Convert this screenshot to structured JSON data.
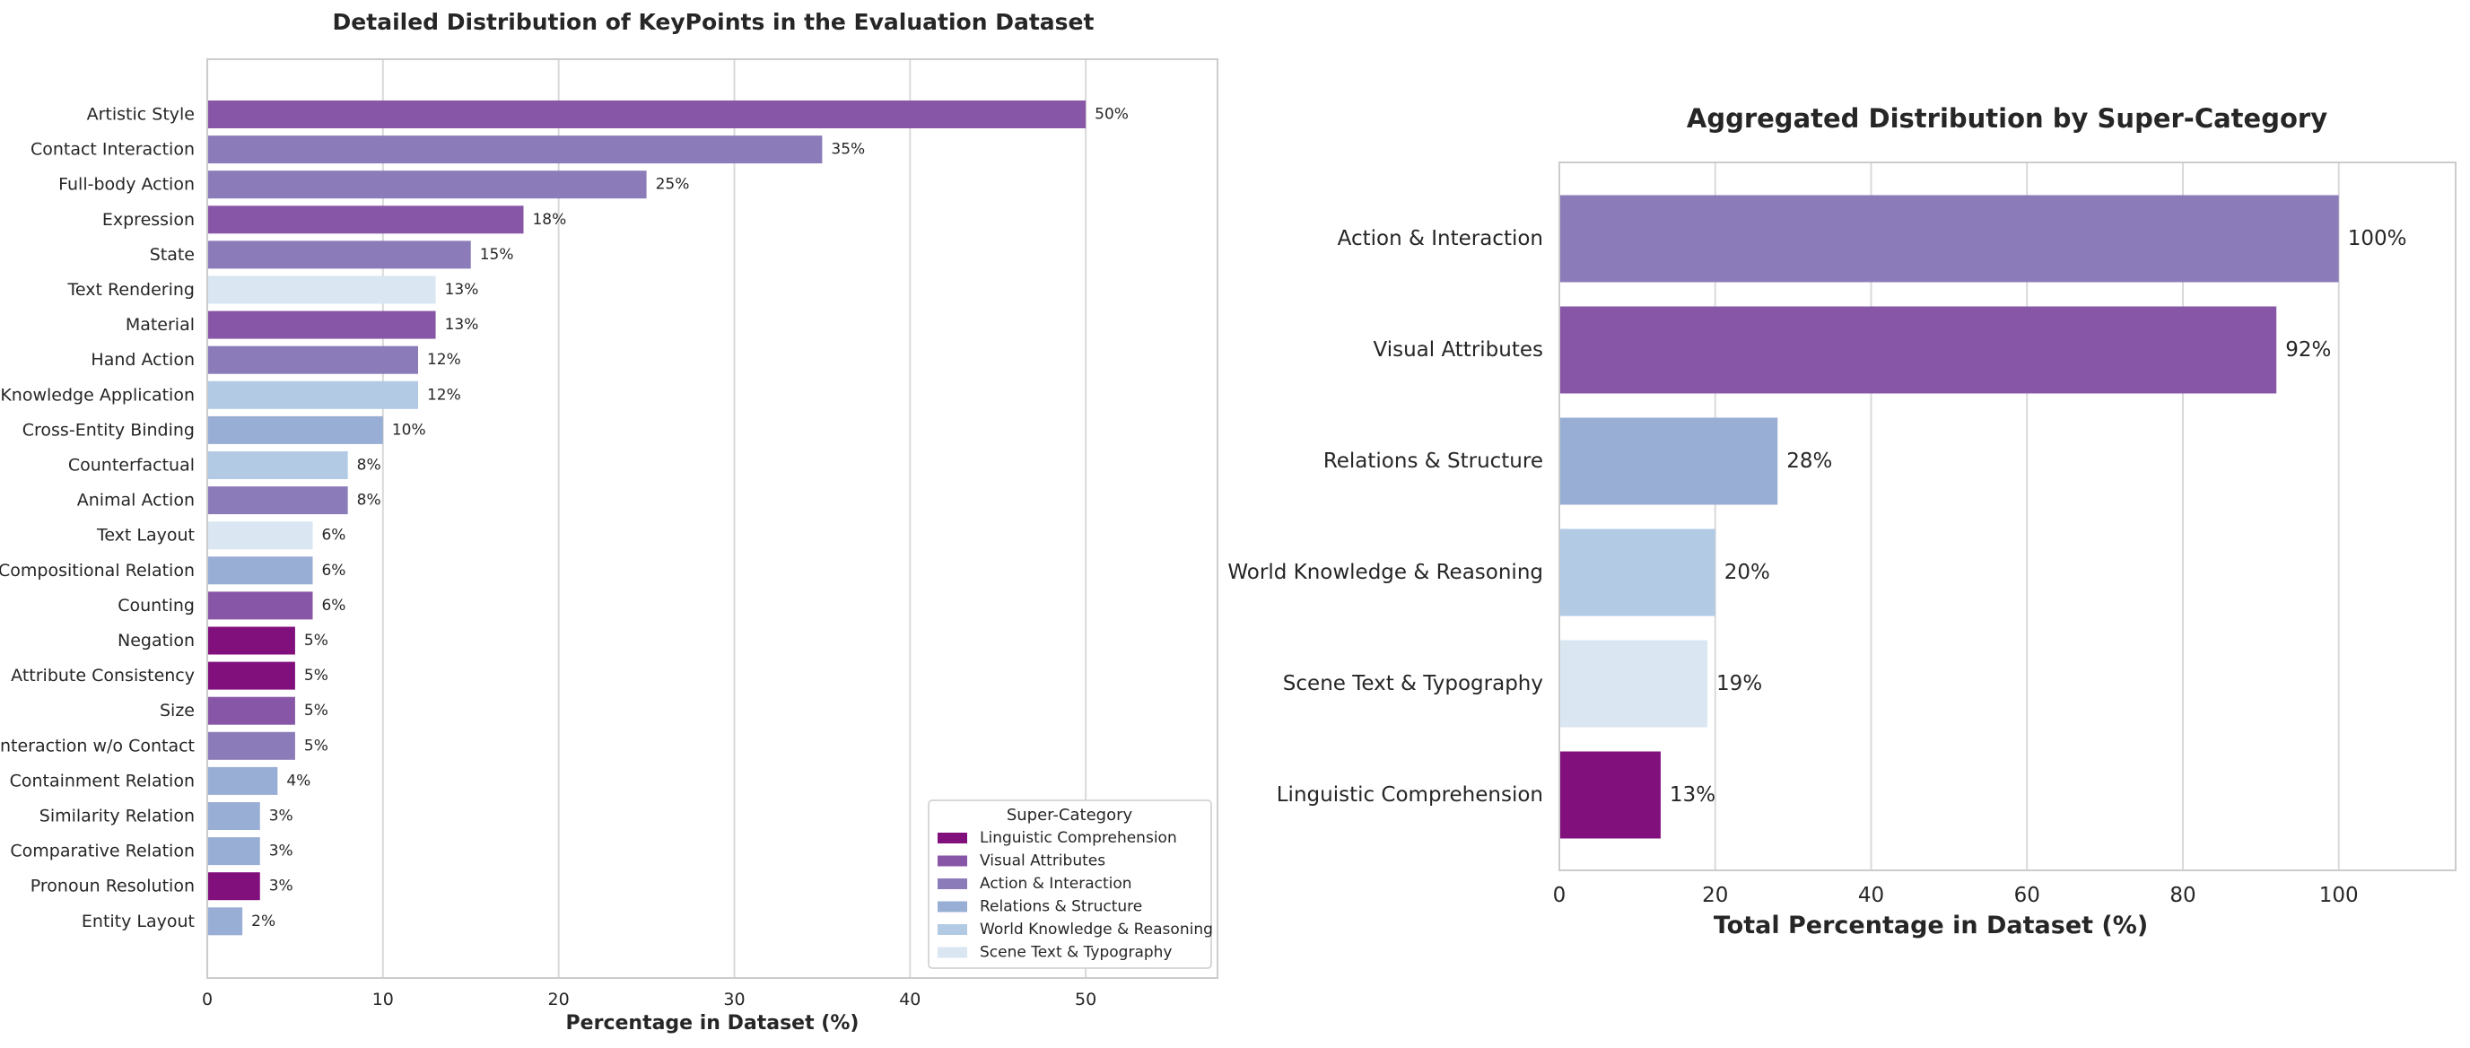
{
  "colors": {
    "linguistic": "#810F7C",
    "visual": "#8856A7",
    "action": "#8C7BB9",
    "relations": "#99AED4",
    "world": "#B2CAE4",
    "scene": "#DAE6F1",
    "grid": "#D9D9D9",
    "axis_frame": "#CCCCCC",
    "text": "#262626"
  },
  "chart_data": [
    {
      "type": "bar",
      "orientation": "horizontal",
      "title": "Detailed Distribution of KeyPoints in the Evaluation Dataset",
      "xlabel": "Percentage in Dataset (%)",
      "ylabel": "",
      "xlim": [
        0,
        57.5
      ],
      "xticks": [
        0,
        10,
        20,
        30,
        40,
        50
      ],
      "grid": "vertical",
      "legend": {
        "title": "Super-Category",
        "position": "lower-right",
        "entries": [
          {
            "label": "Linguistic Comprehension",
            "group": "linguistic"
          },
          {
            "label": "Visual Attributes",
            "group": "visual"
          },
          {
            "label": "Action & Interaction",
            "group": "action"
          },
          {
            "label": "Relations & Structure",
            "group": "relations"
          },
          {
            "label": "World Knowledge & Reasoning",
            "group": "world"
          },
          {
            "label": "Scene Text & Typography",
            "group": "scene"
          }
        ]
      },
      "bars": [
        {
          "category": "Artistic Style",
          "value": 50,
          "label": "50%",
          "group": "visual"
        },
        {
          "category": "Contact Interaction",
          "value": 35,
          "label": "35%",
          "group": "action"
        },
        {
          "category": "Full-body Action",
          "value": 25,
          "label": "25%",
          "group": "action"
        },
        {
          "category": "Expression",
          "value": 18,
          "label": "18%",
          "group": "visual"
        },
        {
          "category": "State",
          "value": 15,
          "label": "15%",
          "group": "action"
        },
        {
          "category": "Text Rendering",
          "value": 13,
          "label": "13%",
          "group": "scene"
        },
        {
          "category": "Material",
          "value": 13,
          "label": "13%",
          "group": "visual"
        },
        {
          "category": "Hand Action",
          "value": 12,
          "label": "12%",
          "group": "action"
        },
        {
          "category": "Knowledge Application",
          "value": 12,
          "label": "12%",
          "group": "world"
        },
        {
          "category": "Cross-Entity Binding",
          "value": 10,
          "label": "10%",
          "group": "relations"
        },
        {
          "category": "Counterfactual",
          "value": 8,
          "label": "8%",
          "group": "world"
        },
        {
          "category": "Animal Action",
          "value": 8,
          "label": "8%",
          "group": "action"
        },
        {
          "category": "Text Layout",
          "value": 6,
          "label": "6%",
          "group": "scene"
        },
        {
          "category": "Compositional Relation",
          "value": 6,
          "label": "6%",
          "group": "relations"
        },
        {
          "category": "Counting",
          "value": 6,
          "label": "6%",
          "group": "visual"
        },
        {
          "category": "Negation",
          "value": 5,
          "label": "5%",
          "group": "linguistic"
        },
        {
          "category": "Attribute Consistency",
          "value": 5,
          "label": "5%",
          "group": "linguistic"
        },
        {
          "category": "Size",
          "value": 5,
          "label": "5%",
          "group": "visual"
        },
        {
          "category": "Interaction w/o Contact",
          "value": 5,
          "label": "5%",
          "group": "action"
        },
        {
          "category": "Containment Relation",
          "value": 4,
          "label": "4%",
          "group": "relations"
        },
        {
          "category": "Similarity Relation",
          "value": 3,
          "label": "3%",
          "group": "relations"
        },
        {
          "category": "Comparative Relation",
          "value": 3,
          "label": "3%",
          "group": "relations"
        },
        {
          "category": "Pronoun Resolution",
          "value": 3,
          "label": "3%",
          "group": "linguistic"
        },
        {
          "category": "Entity Layout",
          "value": 2,
          "label": "2%",
          "group": "relations"
        }
      ]
    },
    {
      "type": "bar",
      "orientation": "horizontal",
      "title": "Aggregated Distribution by Super-Category",
      "xlabel": "Total Percentage in Dataset (%)",
      "ylabel": "",
      "xlim": [
        0,
        115
      ],
      "xticks": [
        0,
        20,
        40,
        60,
        80,
        100
      ],
      "grid": "vertical",
      "bars": [
        {
          "category": "Action & Interaction",
          "value": 100,
          "label": "100%",
          "group": "action"
        },
        {
          "category": "Visual Attributes",
          "value": 92,
          "label": "92%",
          "group": "visual"
        },
        {
          "category": "Relations & Structure",
          "value": 28,
          "label": "28%",
          "group": "relations"
        },
        {
          "category": "World Knowledge & Reasoning",
          "value": 20,
          "label": "20%",
          "group": "world"
        },
        {
          "category": "Scene Text & Typography",
          "value": 19,
          "label": "19%",
          "group": "scene"
        },
        {
          "category": "Linguistic Comprehension",
          "value": 13,
          "label": "13%",
          "group": "linguistic"
        }
      ]
    }
  ]
}
